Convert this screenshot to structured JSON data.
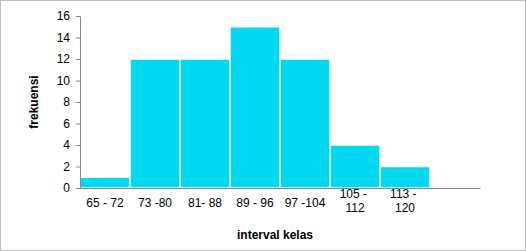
{
  "chart_data": {
    "type": "bar",
    "x_label": "interval kelas",
    "y_label": "frekuensi",
    "categories": [
      "65 - 72",
      "73 -80",
      "81- 88",
      "89 - 96",
      "97 -104",
      "105 - 112",
      "113 - 120",
      null
    ],
    "values": [
      1,
      12,
      12,
      15,
      12,
      4,
      2,
      null
    ],
    "color": "#00d9f2",
    "ylim": [
      0,
      16
    ],
    "yticks": [
      0,
      2,
      4,
      6,
      8,
      10,
      12,
      14,
      16
    ],
    "grid": false
  }
}
